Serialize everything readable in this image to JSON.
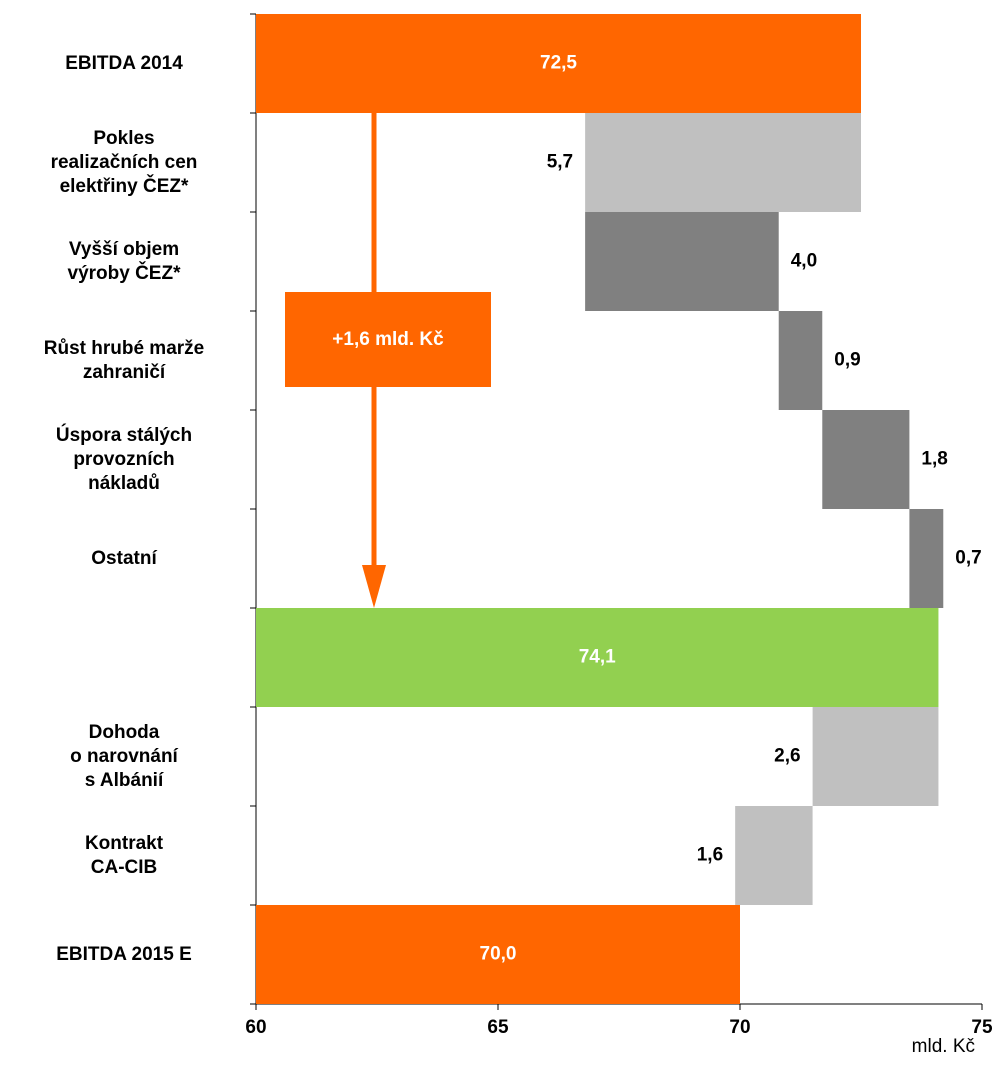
{
  "chart_data": {
    "type": "waterfall",
    "categories": [
      "EBITDA 2014",
      "Pokles\nrealizačních cen\nelektřiny ČEZ*",
      "Vyšší objem\nvýroby ČEZ*",
      "Růst hrubé marže\nzahraničí",
      "Úspora stálých\nprovozních\nnákladů",
      "Ostatní",
      null,
      "Dohoda\no narovnání\ns Albánií",
      "Kontrakt\nCA-CIB",
      "EBITDA 2015 E"
    ],
    "values": [
      72.5,
      -5.7,
      4.0,
      0.9,
      1.8,
      0.7,
      74.1,
      -2.6,
      -1.6,
      70.0
    ],
    "value_labels": [
      "72,5",
      "5,7",
      "4,0",
      "0,9",
      "1,8",
      "0,7",
      "74,1",
      "2,6",
      "1,6",
      "70,0"
    ],
    "measure": [
      "absolute",
      "relative",
      "relative",
      "relative",
      "relative",
      "relative",
      "total",
      "relative",
      "relative",
      "total"
    ],
    "colors": [
      "#ff6600",
      "#c0c0c0",
      "#808080",
      "#808080",
      "#808080",
      "#808080",
      "#92d050",
      "#c0c0c0",
      "#c0c0c0",
      "#ff6600"
    ],
    "xlim": [
      60,
      75
    ],
    "xticks": [
      60,
      65,
      70,
      75
    ],
    "x_label": "mld. Kč",
    "annotation": "+1,6 mld. Kč"
  }
}
